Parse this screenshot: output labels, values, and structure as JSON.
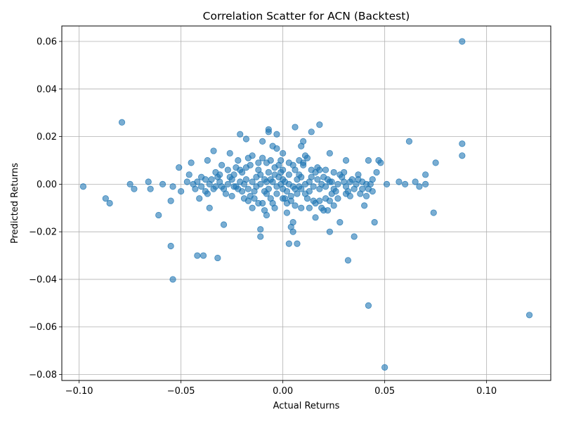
{
  "chart_data": {
    "type": "scatter",
    "title": "Correlation Scatter for ACN (Backtest)",
    "xlabel": "Actual Returns",
    "ylabel": "Predicted Returns",
    "xlim": [
      -0.1085,
      0.1315
    ],
    "ylim": [
      -0.0825,
      0.0665
    ],
    "grid": true,
    "x_ticks": [
      -0.1,
      -0.05,
      0.0,
      0.05,
      0.1
    ],
    "x_tick_labels": [
      "−0.10",
      "−0.05",
      "0.00",
      "0.05",
      "0.10"
    ],
    "y_ticks": [
      -0.08,
      -0.06,
      -0.04,
      -0.02,
      0.0,
      0.02,
      0.04,
      0.06
    ],
    "y_tick_labels": [
      "−0.08",
      "−0.06",
      "−0.04",
      "−0.02",
      "0.00",
      "0.02",
      "0.04",
      "0.06"
    ],
    "marker_color": "#1f77b4",
    "marker_alpha": 0.6,
    "points": [
      [
        0.088,
        0.06
      ],
      [
        0.121,
        -0.055
      ],
      [
        0.05,
        -0.077
      ],
      [
        0.042,
        -0.051
      ],
      [
        -0.079,
        0.026
      ],
      [
        -0.054,
        -0.04
      ],
      [
        -0.055,
        -0.026
      ],
      [
        -0.042,
        -0.03
      ],
      [
        -0.039,
        -0.03
      ],
      [
        -0.032,
        -0.031
      ],
      [
        0.032,
        -0.032
      ],
      [
        0.035,
        -0.022
      ],
      [
        0.074,
        -0.012
      ],
      [
        -0.098,
        -0.001
      ],
      [
        -0.087,
        -0.006
      ],
      [
        -0.085,
        -0.008
      ],
      [
        -0.075,
        0.0
      ],
      [
        -0.073,
        -0.002
      ],
      [
        -0.066,
        0.001
      ],
      [
        -0.065,
        -0.002
      ],
      [
        -0.061,
        -0.013
      ],
      [
        -0.059,
        0.0
      ],
      [
        -0.055,
        -0.007
      ],
      [
        -0.054,
        -0.001
      ],
      [
        -0.051,
        0.007
      ],
      [
        -0.05,
        -0.003
      ],
      [
        0.062,
        0.018
      ],
      [
        0.088,
        0.017
      ],
      [
        0.088,
        0.012
      ],
      [
        0.075,
        0.009
      ],
      [
        0.07,
        0.004
      ],
      [
        0.07,
        0.0
      ],
      [
        0.067,
        -0.001
      ],
      [
        0.065,
        0.001
      ],
      [
        0.06,
        0.0
      ],
      [
        0.057,
        0.001
      ],
      [
        0.051,
        0.0
      ],
      [
        0.048,
        0.009
      ],
      [
        0.047,
        0.01
      ],
      [
        0.046,
        0.005
      ],
      [
        0.045,
        -0.016
      ],
      [
        0.042,
        0.01
      ],
      [
        0.041,
        -0.005
      ],
      [
        0.04,
        -0.009
      ],
      [
        0.037,
        0.002
      ],
      [
        0.006,
        0.024
      ],
      [
        0.014,
        0.022
      ],
      [
        0.018,
        0.025
      ],
      [
        -0.007,
        0.023
      ],
      [
        -0.007,
        0.022
      ],
      [
        -0.021,
        0.021
      ],
      [
        -0.018,
        0.019
      ],
      [
        -0.003,
        0.021
      ],
      [
        0.01,
        0.018
      ],
      [
        0.009,
        0.016
      ],
      [
        -0.01,
        0.018
      ],
      [
        0.023,
        0.013
      ],
      [
        0.031,
        0.01
      ],
      [
        -0.029,
        -0.017
      ],
      [
        -0.011,
        -0.019
      ],
      [
        -0.011,
        -0.022
      ],
      [
        0.003,
        -0.025
      ],
      [
        0.007,
        -0.025
      ],
      [
        0.004,
        -0.018
      ],
      [
        0.005,
        -0.02
      ],
      [
        0.023,
        -0.02
      ],
      [
        0.028,
        -0.016
      ],
      [
        0.005,
        -0.016
      ],
      [
        -0.008,
        -0.013
      ],
      [
        0.016,
        -0.014
      ],
      [
        -0.036,
        -0.01
      ],
      [
        -0.045,
        0.009
      ],
      [
        -0.037,
        0.01
      ],
      [
        -0.034,
        0.014
      ],
      [
        -0.026,
        0.013
      ],
      [
        0.044,
        -0.003
      ],
      [
        0.041,
        0.0
      ],
      [
        -0.046,
        0.004
      ],
      [
        -0.04,
        0.003
      ],
      [
        -0.043,
        -0.002
      ],
      [
        -0.041,
        -0.006
      ],
      [
        0.038,
        -0.004
      ],
      [
        -0.038,
        -0.003
      ],
      [
        0.03,
        0.005
      ],
      [
        -0.03,
        0.008
      ],
      [
        0.025,
        -0.009
      ],
      [
        -0.022,
        0.01
      ],
      [
        0.02,
        -0.011
      ],
      [
        -0.015,
        0.012
      ],
      [
        0.012,
        0.011
      ],
      [
        -0.02,
        0.005
      ],
      [
        0.018,
        0.006
      ],
      [
        -0.012,
        -0.008
      ],
      [
        0.015,
        -0.007
      ],
      [
        -0.008,
        0.009
      ],
      [
        0.01,
        0.008
      ],
      [
        -0.006,
        -0.006
      ],
      [
        0.006,
        0.006
      ],
      [
        -0.004,
        0.004
      ],
      [
        0.004,
        -0.005
      ],
      [
        -0.002,
        0.003
      ],
      [
        0.002,
        -0.003
      ],
      [
        0.0,
        0.002
      ],
      [
        0.0,
        -0.002
      ],
      [
        -0.001,
        0.0
      ],
      [
        0.001,
        0.001
      ],
      [
        -0.003,
        -0.001
      ],
      [
        0.003,
        0.0
      ],
      [
        -0.005,
        0.001
      ],
      [
        0.005,
        -0.001
      ],
      [
        -0.007,
        -0.002
      ],
      [
        0.007,
        0.002
      ],
      [
        -0.009,
        0.002
      ],
      [
        0.009,
        -0.002
      ],
      [
        -0.011,
        0.0
      ],
      [
        0.011,
        0.0
      ],
      [
        -0.013,
        -0.001
      ],
      [
        0.013,
        0.001
      ],
      [
        -0.015,
        0.001
      ],
      [
        0.015,
        -0.001
      ],
      [
        -0.017,
        -0.002
      ],
      [
        0.017,
        0.002
      ],
      [
        -0.019,
        0.0
      ],
      [
        0.019,
        0.0
      ],
      [
        -0.021,
        0.001
      ],
      [
        0.021,
        -0.001
      ],
      [
        -0.023,
        -0.001
      ],
      [
        0.023,
        0.001
      ],
      [
        -0.025,
        0.002
      ],
      [
        0.025,
        -0.002
      ],
      [
        -0.027,
        0.0
      ],
      [
        0.027,
        0.0
      ],
      [
        -0.029,
        -0.002
      ],
      [
        0.029,
        0.003
      ],
      [
        -0.031,
        0.001
      ],
      [
        0.031,
        -0.001
      ],
      [
        -0.033,
        -0.001
      ],
      [
        0.033,
        0.001
      ],
      [
        -0.035,
        0.002
      ],
      [
        0.035,
        -0.002
      ],
      [
        -0.016,
        -0.005
      ],
      [
        0.016,
        0.005
      ],
      [
        -0.012,
        0.006
      ],
      [
        0.012,
        -0.006
      ],
      [
        -0.008,
        -0.004
      ],
      [
        0.008,
        0.004
      ],
      [
        -0.004,
        0.007
      ],
      [
        0.004,
        -0.007
      ],
      [
        -0.024,
        0.004
      ],
      [
        0.024,
        -0.004
      ],
      [
        -0.028,
        -0.004
      ],
      [
        0.028,
        0.004
      ],
      [
        -0.018,
        0.007
      ],
      [
        0.018,
        -0.007
      ],
      [
        -0.01,
        -0.008
      ],
      [
        0.01,
        0.009
      ],
      [
        -0.006,
        0.01
      ],
      [
        0.006,
        -0.009
      ],
      [
        -0.014,
        -0.006
      ],
      [
        0.014,
        0.006
      ],
      [
        -0.002,
        0.008
      ],
      [
        0.002,
        -0.008
      ],
      [
        -0.02,
        -0.003
      ],
      [
        0.02,
        0.003
      ],
      [
        -0.026,
        0.003
      ],
      [
        0.026,
        -0.003
      ],
      [
        -0.032,
        0.003
      ],
      [
        0.032,
        -0.003
      ],
      [
        -0.036,
        0.0
      ],
      [
        0.036,
        0.0
      ],
      [
        -0.038,
        0.002
      ],
      [
        -0.04,
        -0.001
      ],
      [
        -0.044,
        0.0
      ],
      [
        -0.047,
        0.001
      ],
      [
        -0.042,
        0.001
      ],
      [
        0.039,
        0.001
      ],
      [
        0.042,
        -0.002
      ],
      [
        0.043,
        0.0
      ],
      [
        0.039,
        -0.002
      ],
      [
        0.044,
        0.002
      ],
      [
        -0.003,
        0.015
      ],
      [
        -0.005,
        0.016
      ],
      [
        0.0,
        0.013
      ],
      [
        -0.01,
        0.011
      ],
      [
        0.008,
        0.01
      ],
      [
        -0.017,
        0.011
      ],
      [
        0.011,
        0.012
      ],
      [
        -0.001,
        0.01
      ],
      [
        0.003,
        0.009
      ],
      [
        -0.012,
        0.009
      ],
      [
        0.013,
        -0.01
      ],
      [
        -0.004,
        -0.01
      ],
      [
        0.002,
        -0.012
      ],
      [
        -0.009,
        -0.011
      ],
      [
        0.009,
        -0.01
      ],
      [
        -0.015,
        -0.01
      ],
      [
        0.019,
        -0.01
      ],
      [
        0.022,
        -0.011
      ],
      [
        -0.019,
        -0.006
      ],
      [
        0.021,
        0.006
      ],
      [
        -0.007,
        0.005
      ],
      [
        0.007,
        -0.004
      ],
      [
        -0.001,
        0.005
      ],
      [
        0.001,
        -0.006
      ],
      [
        -0.013,
        0.003
      ],
      [
        0.013,
        -0.003
      ],
      [
        -0.022,
        -0.002
      ],
      [
        0.022,
        0.002
      ],
      [
        -0.03,
        -0.001
      ],
      [
        0.03,
        0.001
      ],
      [
        -0.034,
        -0.002
      ],
      [
        0.034,
        0.002
      ],
      [
        -0.025,
        -0.005
      ],
      [
        0.025,
        0.005
      ],
      [
        -0.011,
        0.004
      ],
      [
        0.011,
        -0.004
      ],
      [
        -0.003,
        -0.004
      ],
      [
        0.003,
        0.004
      ],
      [
        -0.006,
        0.002
      ],
      [
        0.006,
        -0.002
      ],
      [
        -0.018,
        0.002
      ],
      [
        0.018,
        -0.002
      ],
      [
        -0.009,
        -0.003
      ],
      [
        0.009,
        0.003
      ],
      [
        -0.027,
        0.006
      ],
      [
        0.027,
        -0.006
      ],
      [
        -0.014,
        -0.003
      ],
      [
        0.014,
        0.003
      ],
      [
        -0.021,
        0.006
      ],
      [
        0.021,
        -0.006
      ],
      [
        -0.005,
        -0.008
      ],
      [
        0.005,
        0.008
      ],
      [
        -0.016,
        0.008
      ],
      [
        0.016,
        -0.008
      ],
      [
        0.0,
        0.006
      ],
      [
        0.0,
        -0.006
      ],
      [
        -0.008,
        0.001
      ],
      [
        0.008,
        -0.001
      ],
      [
        -0.024,
        -0.001
      ],
      [
        0.024,
        0.001
      ],
      [
        -0.031,
        0.004
      ],
      [
        0.031,
        -0.004
      ],
      [
        -0.037,
        -0.004
      ],
      [
        0.037,
        0.004
      ],
      [
        -0.033,
        0.005
      ],
      [
        0.033,
        -0.005
      ],
      [
        -0.023,
        0.007
      ],
      [
        0.023,
        -0.007
      ],
      [
        -0.017,
        -0.007
      ],
      [
        0.017,
        0.007
      ]
    ]
  }
}
